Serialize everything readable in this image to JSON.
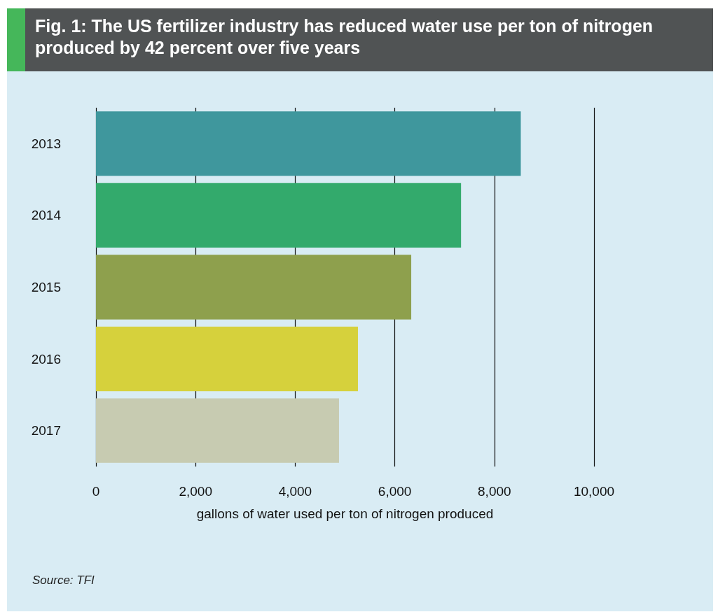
{
  "chart_data": {
    "type": "bar",
    "orientation": "horizontal",
    "title": "Fig. 1: The US fertilizer industry has reduced water use per ton of nitrogen produced by 42 percent over five years",
    "categories": [
      "2013",
      "2014",
      "2015",
      "2016",
      "2017"
    ],
    "values": [
      8530,
      7330,
      6330,
      5260,
      4880
    ],
    "colors": [
      "#3f979d",
      "#33aa6c",
      "#8ea04d",
      "#d6d13c",
      "#c7cbb1"
    ],
    "xlim": [
      0,
      10000
    ],
    "xticks": [
      {
        "value": 0,
        "label": "0"
      },
      {
        "value": 2000,
        "label": "2,000"
      },
      {
        "value": 4000,
        "label": "4,000"
      },
      {
        "value": 6000,
        "label": "6,000"
      },
      {
        "value": 8000,
        "label": "8,000"
      },
      {
        "value": 10000,
        "label": "10,000"
      }
    ],
    "xlabel": "gallons of water used per ton of nitrogen produced",
    "grid": "x",
    "annotations": [
      "Source: TFI"
    ]
  }
}
